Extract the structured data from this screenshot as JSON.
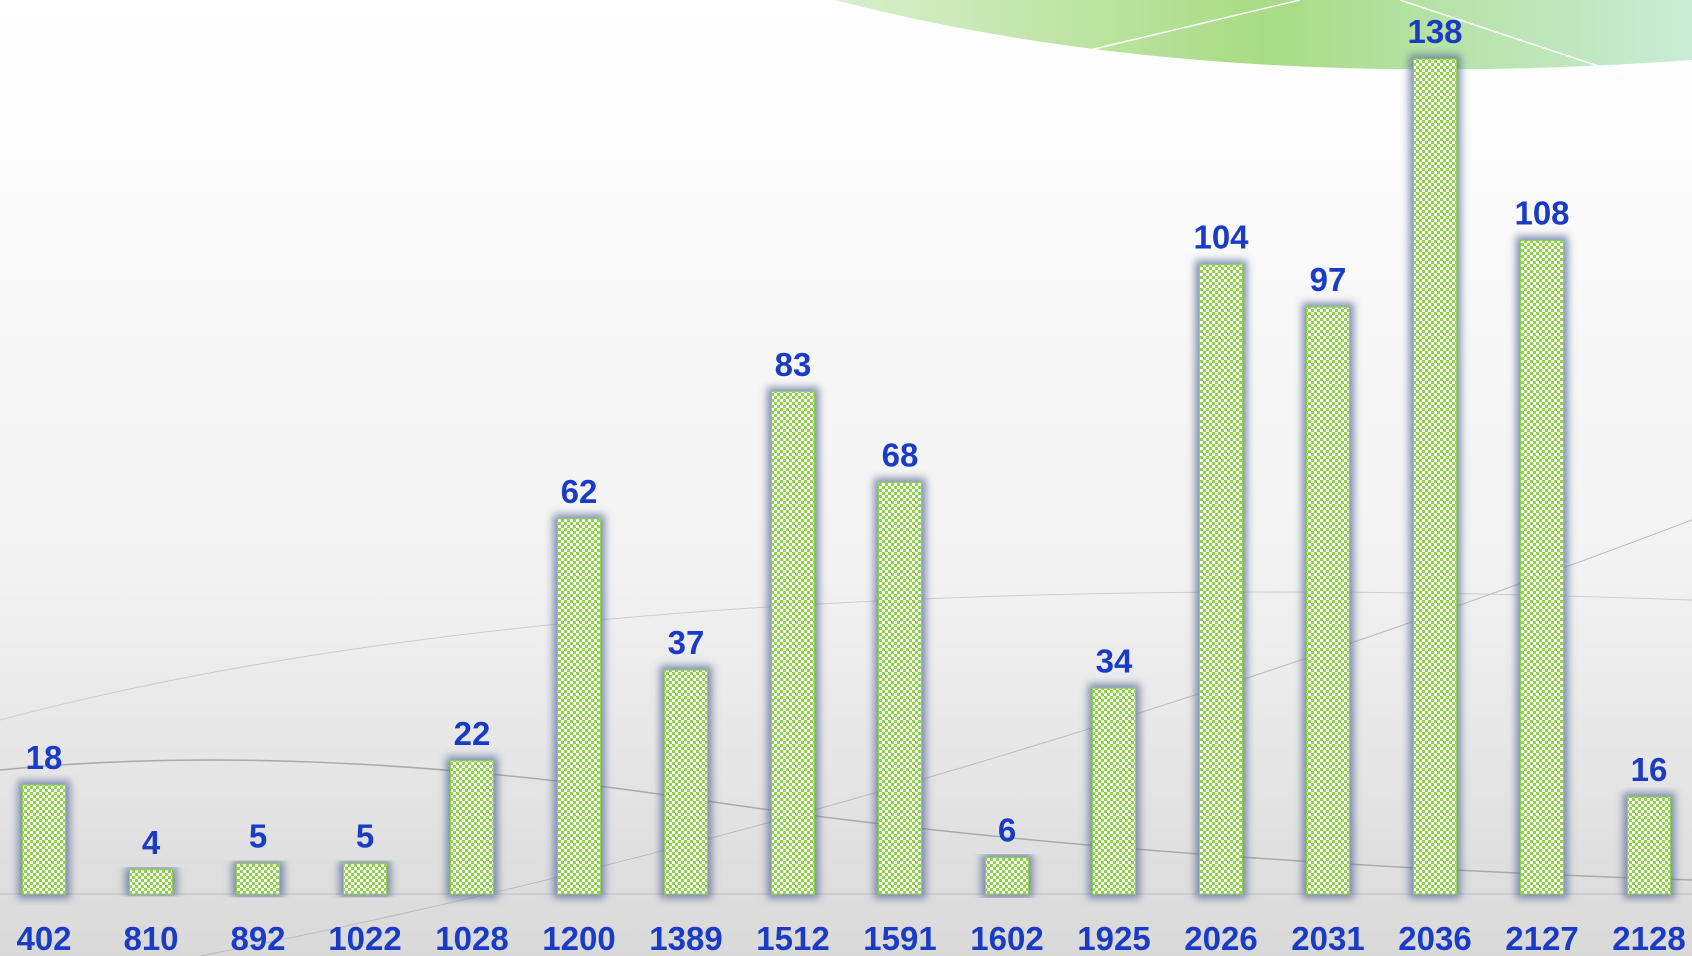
{
  "chart_data": {
    "type": "bar",
    "categories": [
      "402",
      "810",
      "892",
      "1022",
      "1028",
      "1200",
      "1389",
      "1512",
      "1591",
      "1602",
      "1925",
      "2026",
      "2031",
      "2036",
      "2127",
      "2128"
    ],
    "values": [
      18,
      4,
      5,
      5,
      22,
      62,
      37,
      83,
      68,
      6,
      34,
      104,
      97,
      138,
      108,
      16
    ],
    "color": "#8fd34a"
  }
}
